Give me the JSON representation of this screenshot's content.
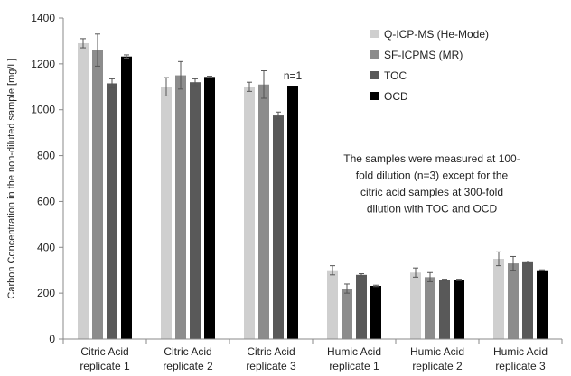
{
  "chart_data": {
    "type": "bar",
    "title": "",
    "xlabel": "",
    "ylabel": "Carbon Concentration in the non-diluted sample [mg/L]",
    "ylim": [
      0,
      1400
    ],
    "yticks": [
      0,
      200,
      400,
      600,
      800,
      1000,
      1200,
      1400
    ],
    "grid": false,
    "legend_position": "top-right",
    "categories": [
      [
        "Citric Acid",
        "replicate 1"
      ],
      [
        "Citric Acid",
        "replicate 2"
      ],
      [
        "Citric Acid",
        "replicate 3"
      ],
      [
        "Humic Acid",
        "replicate 1"
      ],
      [
        "Humic Acid",
        "replicate 2"
      ],
      [
        "Humic Acid",
        "replicate 3"
      ]
    ],
    "series": [
      {
        "name": "Q-ICP-MS (He-Mode)",
        "color": "#cfcfcf",
        "values": [
          1290,
          1100,
          1100,
          300,
          290,
          350
        ],
        "errors": [
          20,
          40,
          20,
          20,
          20,
          30
        ]
      },
      {
        "name": "SF-ICPMS (MR)",
        "color": "#8c8c8c",
        "values": [
          1260,
          1150,
          1110,
          220,
          270,
          330
        ],
        "errors": [
          70,
          60,
          60,
          20,
          20,
          30
        ]
      },
      {
        "name": "TOC",
        "color": "#595959",
        "values": [
          1115,
          1120,
          975,
          280,
          258,
          335
        ],
        "errors": [
          20,
          15,
          15,
          5,
          3,
          5
        ]
      },
      {
        "name": "OCD",
        "color": "#000000",
        "values": [
          1232,
          1143,
          1105,
          232,
          258,
          300
        ],
        "errors": [
          7,
          3,
          0,
          3,
          3,
          2
        ]
      }
    ],
    "annotations": [
      {
        "text": "n=1",
        "category_index": 2,
        "series_index": 3
      }
    ],
    "note": [
      "The samples were measured at 100-",
      "fold dilution (n=3) except for the",
      "citric acid samples at 300-fold",
      "dilution with TOC and OCD"
    ]
  }
}
